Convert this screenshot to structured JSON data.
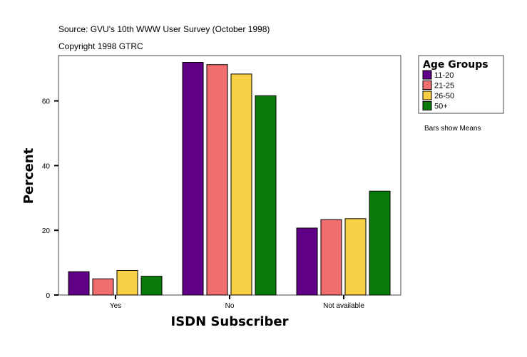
{
  "chart_data": {
    "type": "bar",
    "source": "Source: GVU's 10th WWW User Survey (October 1998)",
    "copyright": "Copyright 1998 GTRC",
    "xlabel": "ISDN Subscriber",
    "ylabel": "Percent",
    "categories": [
      "Yes",
      "No",
      "Not available"
    ],
    "ylim": [
      0,
      74
    ],
    "yticks": [
      0,
      20,
      40,
      60
    ],
    "grid": false,
    "legend": {
      "title": "Age Groups",
      "placement": "right"
    },
    "note": "Bars show Means",
    "series": [
      {
        "name": "11-20",
        "color": "#5f0087",
        "values": [
          7.2,
          71.9,
          20.7
        ]
      },
      {
        "name": "21-25",
        "color": "#f06e6e",
        "values": [
          5.0,
          71.2,
          23.3
        ]
      },
      {
        "name": "26-50",
        "color": "#f7d046",
        "values": [
          7.6,
          68.3,
          23.6
        ]
      },
      {
        "name": "50+",
        "color": "#0a7a0a",
        "values": [
          5.8,
          61.6,
          32.1
        ]
      }
    ]
  }
}
